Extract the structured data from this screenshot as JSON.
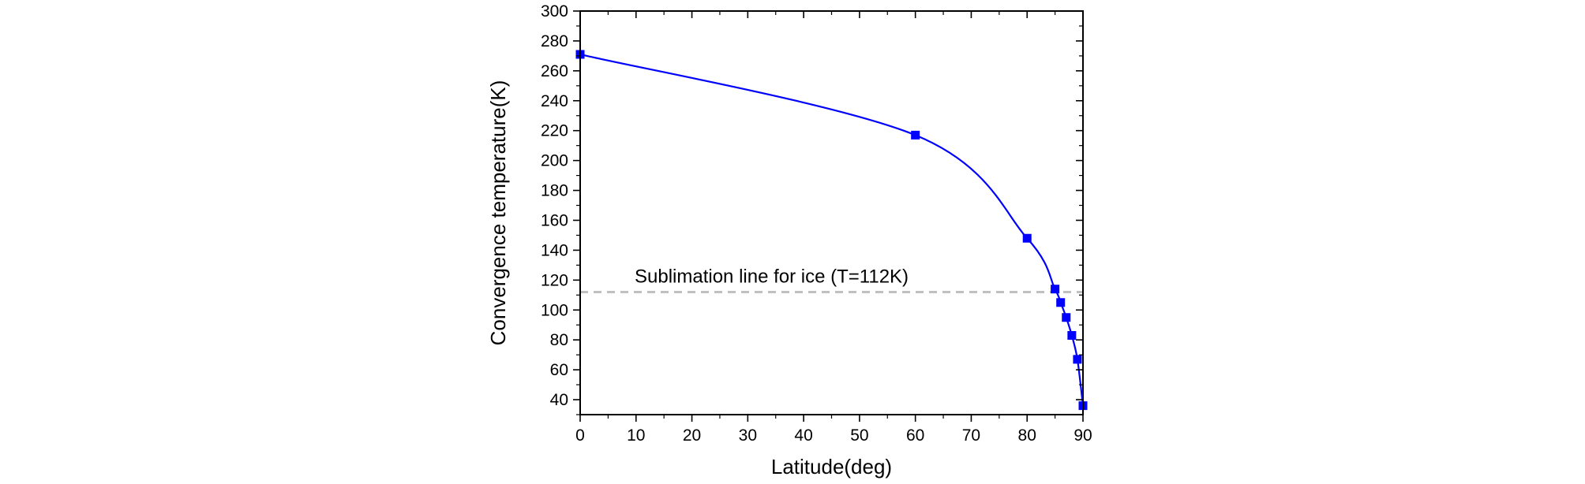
{
  "chart_data": {
    "type": "line",
    "title": "",
    "xlabel": "Latitude(deg)",
    "ylabel": "Convergence temperature(K)",
    "xlim": [
      0,
      90
    ],
    "ylim": [
      30,
      300
    ],
    "x_ticks": [
      "0",
      "10",
      "20",
      "30",
      "40",
      "50",
      "60",
      "70",
      "80",
      "90"
    ],
    "y_ticks": [
      "40",
      "60",
      "80",
      "100",
      "120",
      "140",
      "160",
      "180",
      "200",
      "220",
      "240",
      "260",
      "280",
      "300"
    ],
    "grid": false,
    "legend": "none",
    "series": [
      {
        "color": "#0000ff",
        "marker": "square",
        "x": [
          0,
          60,
          80,
          85,
          86,
          87,
          88,
          89,
          90
        ],
        "y": [
          271,
          217,
          148,
          114,
          105,
          95,
          83,
          67,
          36
        ]
      }
    ],
    "annotations": [
      {
        "text": "Sublimation line for ice (T=112K)",
        "y": 112,
        "style": "dashed",
        "color": "#c0c0c0"
      }
    ]
  }
}
